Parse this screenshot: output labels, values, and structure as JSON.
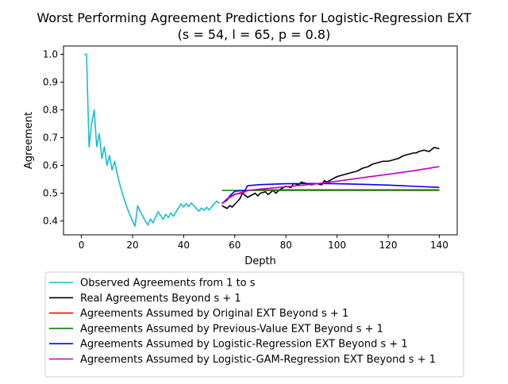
{
  "chart_data": {
    "type": "line",
    "title": "Worst Performing Agreement Predictions for Logistic-Regression EXT",
    "subtitle": "(s = 54, l = 65, p = 0.8)",
    "xlabel": "Depth",
    "ylabel": "Agreement",
    "xlim": [
      -7,
      147
    ],
    "ylim": [
      0.35,
      1.03
    ],
    "xticks": [
      0,
      20,
      40,
      60,
      80,
      100,
      120,
      140
    ],
    "yticks": [
      0.4,
      0.5,
      0.6,
      0.7,
      0.8,
      0.9,
      1.0
    ],
    "ytick_labels": [
      "0.4",
      "0.5",
      "0.6",
      "0.7",
      "0.8",
      "0.9",
      "1.0"
    ],
    "grid": false,
    "legend_position": "below chart",
    "series": [
      {
        "name": "Observed Agreements from 1 to s",
        "color": "#17becf",
        "x": [
          1,
          2,
          3,
          4,
          5,
          6,
          7,
          8,
          9,
          10,
          11,
          12,
          13,
          14,
          15,
          16,
          17,
          18,
          19,
          20,
          21,
          22,
          23,
          24,
          25,
          26,
          27,
          28,
          29,
          30,
          31,
          32,
          33,
          34,
          35,
          36,
          37,
          38,
          39,
          40,
          41,
          42,
          43,
          44,
          45,
          46,
          47,
          48,
          49,
          50,
          51,
          52,
          53,
          54
        ],
        "y": [
          1.0,
          1.0,
          0.667,
          0.75,
          0.8,
          0.667,
          0.714,
          0.625,
          0.667,
          0.6,
          0.636,
          0.583,
          0.615,
          0.571,
          0.533,
          0.5,
          0.471,
          0.444,
          0.421,
          0.4,
          0.381,
          0.455,
          0.435,
          0.417,
          0.4,
          0.385,
          0.407,
          0.393,
          0.414,
          0.433,
          0.419,
          0.406,
          0.424,
          0.412,
          0.429,
          0.417,
          0.432,
          0.447,
          0.462,
          0.45,
          0.463,
          0.452,
          0.465,
          0.455,
          0.444,
          0.435,
          0.447,
          0.438,
          0.449,
          0.44,
          0.451,
          0.462,
          0.472,
          0.463
        ]
      },
      {
        "name": "Real Agreements Beyond s + 1",
        "color": "#000000",
        "x": [
          55,
          57,
          58,
          59,
          60,
          62,
          63,
          65,
          66,
          68,
          69,
          70,
          72,
          73,
          75,
          76,
          78,
          80,
          82,
          83,
          85,
          86,
          88,
          90,
          92,
          94,
          95,
          96,
          98,
          100,
          102,
          104,
          106,
          108,
          110,
          112,
          114,
          116,
          118,
          120,
          122,
          124,
          126,
          128,
          130,
          131,
          132,
          134,
          136,
          138,
          140
        ],
        "y": [
          0.455,
          0.445,
          0.455,
          0.45,
          0.46,
          0.48,
          0.5,
          0.485,
          0.49,
          0.5,
          0.49,
          0.5,
          0.505,
          0.495,
          0.51,
          0.5,
          0.515,
          0.525,
          0.52,
          0.535,
          0.53,
          0.54,
          0.535,
          0.53,
          0.535,
          0.53,
          0.545,
          0.54,
          0.55,
          0.56,
          0.565,
          0.57,
          0.575,
          0.58,
          0.59,
          0.595,
          0.605,
          0.61,
          0.615,
          0.615,
          0.62,
          0.625,
          0.635,
          0.64,
          0.645,
          0.645,
          0.65,
          0.655,
          0.65,
          0.665,
          0.66
        ]
      },
      {
        "name": "Agreements Assumed by Original EXT Beyond s + 1",
        "color": "#ff0000",
        "x": [
          55,
          57,
          60,
          65,
          70,
          80,
          100,
          120,
          140
        ],
        "y": [
          0.463,
          0.478,
          0.495,
          0.51,
          0.512,
          0.512,
          0.512,
          0.512,
          0.512
        ]
      },
      {
        "name": "Agreements Assumed by Previous-Value EXT Beyond s + 1",
        "color": "#008000",
        "x": [
          55,
          140
        ],
        "y": [
          0.51,
          0.51
        ]
      },
      {
        "name": "Agreements Assumed by Logistic-Regression EXT Beyond s + 1",
        "color": "#0000ff",
        "x": [
          55,
          57,
          58,
          60,
          64,
          65,
          70,
          80,
          90,
          100,
          110,
          120,
          130,
          140
        ],
        "y": [
          0.463,
          0.475,
          0.49,
          0.507,
          0.51,
          0.527,
          0.531,
          0.534,
          0.535,
          0.534,
          0.532,
          0.529,
          0.525,
          0.521
        ]
      },
      {
        "name": "Agreements Assumed by Logistic-GAM-Regression EXT Beyond s + 1",
        "color": "#bf00bf",
        "x": [
          55,
          57,
          60,
          63,
          65,
          70,
          80,
          90,
          100,
          110,
          120,
          130,
          140
        ],
        "y": [
          0.463,
          0.48,
          0.497,
          0.5,
          0.51,
          0.515,
          0.523,
          0.532,
          0.543,
          0.556,
          0.568,
          0.581,
          0.596
        ]
      }
    ]
  }
}
